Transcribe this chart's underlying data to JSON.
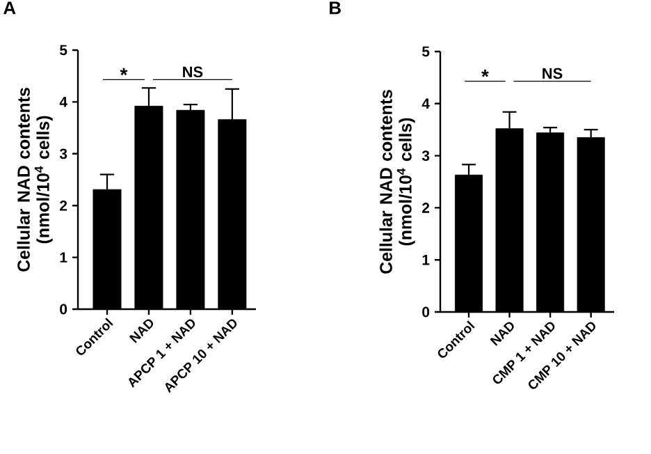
{
  "chart_data": [
    {
      "type": "bar",
      "title": "A",
      "ylabel": "Cellular NAD contents (nmol/10$^{4}$ cells)",
      "categories": [
        "Control",
        "NAD",
        "APCP 1 + NAD",
        "APCP 10 + NAD"
      ],
      "values": [
        2.31,
        3.92,
        3.84,
        3.66
      ],
      "color": "#000000",
      "errors": [
        [
          2.31,
          2.6
        ],
        [
          3.92,
          4.27
        ],
        [
          3.84,
          3.95
        ],
        [
          3.66,
          4.25
        ]
      ],
      "ylim": [
        0,
        5
      ],
      "yticks": [
        0,
        1,
        2,
        3,
        4,
        5
      ],
      "annotations": [
        "*",
        "NS"
      ]
    },
    {
      "type": "bar",
      "title": "B",
      "ylabel": "Cellular NAD contents (nmol/10$^{4}$ cells)",
      "categories": [
        "Control",
        "NAD",
        "CMP 1 + NAD",
        "CMP 10 + NAD"
      ],
      "values": [
        2.63,
        3.52,
        3.44,
        3.35
      ],
      "color": "#000000",
      "errors": [
        [
          2.63,
          2.83
        ],
        [
          3.52,
          3.84
        ],
        [
          3.44,
          3.54
        ],
        [
          3.35,
          3.5
        ]
      ],
      "ylim": [
        0,
        5
      ],
      "yticks": [
        0,
        1,
        2,
        3,
        4,
        5
      ],
      "annotations": [
        "*",
        "NS"
      ]
    }
  ]
}
